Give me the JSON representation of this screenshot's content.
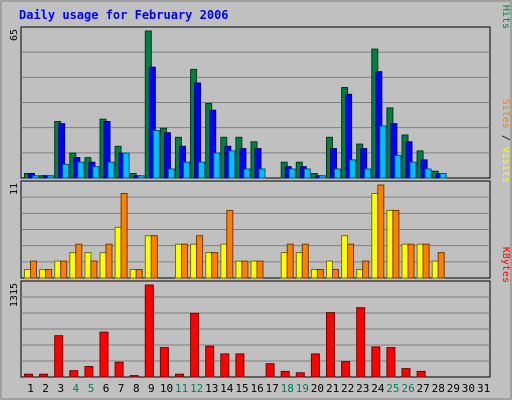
{
  "chart_data": {
    "type": "bar",
    "title": "Daily usage for February 2006",
    "categories": [
      "1",
      "2",
      "3",
      "4",
      "5",
      "6",
      "7",
      "8",
      "9",
      "10",
      "11",
      "12",
      "13",
      "14",
      "15",
      "16",
      "17",
      "18",
      "19",
      "20",
      "21",
      "22",
      "23",
      "24",
      "25",
      "26",
      "27",
      "28",
      "29",
      "30",
      "31"
    ],
    "weekend_categories": [
      "4",
      "5",
      "11",
      "12",
      "18",
      "19",
      "25",
      "26"
    ],
    "panels": [
      {
        "ymax_label": "65",
        "ymax": 65,
        "ylabel_parts": [
          "Pages",
          " / ",
          "Files",
          " / ",
          "Hits"
        ],
        "series": [
          {
            "name": "Hits",
            "color": "#008040",
            "values": [
              2,
              1,
              25,
              11,
              9,
              26,
              14,
              2,
              65,
              22,
              18,
              48,
              33,
              18,
              18,
              16,
              0,
              7,
              7,
              2,
              18,
              40,
              15,
              57,
              31,
              19,
              12,
              3,
              0,
              0,
              0
            ]
          },
          {
            "name": "Files",
            "color": "#0000ff",
            "values": [
              2,
              1,
              24,
              9,
              7,
              25,
              11,
              1,
              49,
              20,
              14,
              42,
              30,
              14,
              13,
              13,
              0,
              5,
              5,
              1,
              13,
              37,
              13,
              47,
              24,
              16,
              8,
              2,
              0,
              0,
              0
            ]
          },
          {
            "name": "Pages",
            "color": "#00c0ff",
            "values": [
              1,
              1,
              6,
              7,
              5,
              7,
              11,
              1,
              21,
              4,
              7,
              7,
              11,
              12,
              4,
              4,
              0,
              4,
              4,
              1,
              4,
              8,
              4,
              23,
              10,
              7,
              4,
              2,
              0,
              0,
              0
            ]
          }
        ]
      },
      {
        "ymax_label": "11",
        "ymax": 11,
        "ylabel_parts": [
          "Sites",
          " / ",
          "Visits"
        ],
        "series": [
          {
            "name": "Visits",
            "color": "#ffff00",
            "values": [
              1,
              1,
              2,
              3,
              3,
              3,
              6,
              1,
              5,
              0,
              4,
              4,
              3,
              4,
              2,
              2,
              0,
              3,
              3,
              1,
              2,
              5,
              1,
              10,
              8,
              4,
              4,
              2,
              0,
              0,
              0
            ]
          },
          {
            "name": "Sites",
            "color": "#ff8000",
            "values": [
              2,
              1,
              2,
              4,
              2,
              4,
              10,
              1,
              5,
              0,
              4,
              5,
              3,
              8,
              2,
              2,
              0,
              4,
              4,
              1,
              1,
              4,
              2,
              11,
              8,
              4,
              4,
              3,
              0,
              0,
              0
            ]
          }
        ]
      },
      {
        "ymax_label": "1315",
        "ymax": 1315,
        "ylabel_parts": [
          "KBytes"
        ],
        "series": [
          {
            "name": "KBytes",
            "color": "#ff0000",
            "values": [
              40,
              40,
              590,
              90,
              150,
              640,
              210,
              20,
              1315,
              420,
              40,
              910,
              440,
              330,
              330,
              0,
              190,
              80,
              60,
              330,
              920,
              220,
              990,
              430,
              420,
              120,
              80,
              0,
              0,
              0,
              0
            ]
          }
        ]
      }
    ],
    "grid": true
  },
  "colors": {
    "background": "#c0c0c0",
    "title": "#0000ff",
    "weekday_label": "#000000",
    "weekend_label": "#00805c",
    "gridline": "#808080"
  }
}
